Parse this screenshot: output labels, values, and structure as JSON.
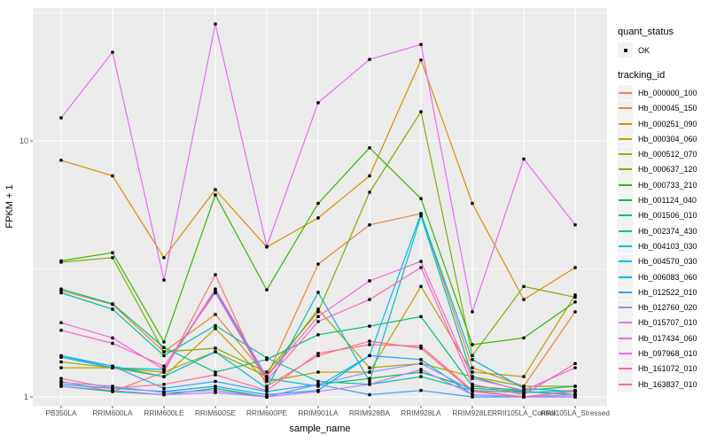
{
  "legend": {
    "quant_status_title": "quant_status",
    "quant_status_items": [
      {
        "label": "OK",
        "marker": "point",
        "color": "#000000"
      }
    ],
    "tracking_id_title": "tracking_id"
  },
  "chart_data": {
    "type": "line",
    "title": "",
    "xlabel": "sample_name",
    "ylabel": "FPKM + 1",
    "y_scale": "log10",
    "ylim": [
      0.93,
      33.5
    ],
    "y_major_ticks": [
      1,
      10
    ],
    "y_tick_labels": [
      "1",
      "10"
    ],
    "y_minor_ticks": [
      3.1623,
      31.623
    ],
    "grid": true,
    "legend_position": "right",
    "point_marker": {
      "shape": "square",
      "color": "#000000",
      "size": 3.4
    },
    "colors": {
      "figure_background": "#FFFFFF",
      "panel_background": "#EBEBEB",
      "gridline": "#FFFFFF",
      "axis_text": "#4D4D4D",
      "axis_title": "#000000",
      "tick_mark": "#333333",
      "legend_key_background": "#F2F2F2"
    },
    "categories": [
      "PB350LA",
      "RRIM600LA",
      "RRIM600LE",
      "RRIM600SE",
      "RRIM600PE",
      "RRIM901LA",
      "RRIM928BA",
      "RRIM928LA",
      "RRIM928LE",
      "RRII105LA_Control",
      "RRII105LA_Stressed"
    ],
    "series": [
      {
        "name": "Hb_000000_100",
        "color": "#F8766D",
        "values": [
          1.15,
          1.05,
          1.25,
          3.0,
          1.1,
          1.45,
          1.65,
          1.55,
          1.05,
          1.0,
          1.05
        ]
      },
      {
        "name": "Hb_000045_150",
        "color": "#EA8331",
        "values": [
          2.6,
          2.3,
          1.5,
          2.1,
          1.2,
          3.3,
          4.7,
          5.2,
          1.3,
          1.1,
          2.15
        ]
      },
      {
        "name": "Hb_000251_090",
        "color": "#D89000",
        "values": [
          8.4,
          7.3,
          3.5,
          6.45,
          3.85,
          5.0,
          7.3,
          20.7,
          5.7,
          2.4,
          3.2
        ]
      },
      {
        "name": "Hb_000304_060",
        "color": "#C09B00",
        "values": [
          1.3,
          1.3,
          1.2,
          1.85,
          1.15,
          1.25,
          1.25,
          2.7,
          1.25,
          1.2,
          2.5
        ]
      },
      {
        "name": "Hb_000512_070",
        "color": "#A3A500",
        "values": [
          1.37,
          1.3,
          1.25,
          1.5,
          1.2,
          2.2,
          1.3,
          1.35,
          1.2,
          1.1,
          1.1
        ]
      },
      {
        "name": "Hb_000637_120",
        "color": "#7CAE00",
        "values": [
          3.36,
          3.5,
          1.5,
          1.55,
          1.25,
          2.15,
          6.3,
          13.0,
          1.45,
          2.7,
          2.45
        ]
      },
      {
        "name": "Hb_000733_210",
        "color": "#39B600",
        "values": [
          3.4,
          3.66,
          1.64,
          6.15,
          2.62,
          5.7,
          9.4,
          5.95,
          1.6,
          1.7,
          2.35
        ]
      },
      {
        "name": "Hb_001124_040",
        "color": "#00BB4E",
        "values": [
          1.1,
          1.05,
          1.02,
          1.08,
          1.0,
          1.12,
          1.18,
          1.25,
          1.08,
          1.05,
          1.02
        ]
      },
      {
        "name": "Hb_001506_010",
        "color": "#00BF7D",
        "values": [
          2.64,
          2.31,
          1.56,
          1.25,
          1.4,
          1.75,
          1.89,
          2.06,
          1.1,
          1.06,
          1.1
        ]
      },
      {
        "name": "Hb_002374_430",
        "color": "#00C1A3",
        "values": [
          2.55,
          2.2,
          1.45,
          1.9,
          1.42,
          1.15,
          1.12,
          1.2,
          1.06,
          1.04,
          1.06
        ]
      },
      {
        "name": "Hb_004103_030",
        "color": "#00BFC4",
        "values": [
          1.45,
          1.32,
          1.2,
          1.5,
          1.08,
          2.56,
          1.15,
          5.1,
          1.2,
          1.05,
          1.02
        ]
      },
      {
        "name": "Hb_004570_030",
        "color": "#00BAE0",
        "values": [
          1.43,
          1.3,
          1.28,
          2.6,
          1.18,
          1.1,
          1.45,
          5.2,
          1.4,
          1.08,
          1.05
        ]
      },
      {
        "name": "Hb_006083_060",
        "color": "#00B0F6",
        "values": [
          1.12,
          1.08,
          1.05,
          1.1,
          1.02,
          1.06,
          1.45,
          1.4,
          1.02,
          1.0,
          1.02
        ]
      },
      {
        "name": "Hb_012522_010",
        "color": "#35A2FF",
        "values": [
          1.43,
          1.32,
          1.08,
          1.15,
          1.05,
          1.12,
          1.02,
          1.06,
          1.0,
          1.0,
          1.0
        ]
      },
      {
        "name": "Hb_012760_020",
        "color": "#9590FF",
        "values": [
          1.14,
          1.1,
          1.04,
          1.06,
          1.0,
          1.12,
          1.25,
          1.35,
          1.06,
          1.0,
          1.02
        ]
      },
      {
        "name": "Hb_015707_010",
        "color": "#C77CFF",
        "values": [
          1.1,
          1.06,
          1.02,
          1.04,
          1.0,
          1.05,
          1.12,
          1.28,
          1.02,
          1.0,
          1.0
        ]
      },
      {
        "name": "Hb_017434_060",
        "color": "#E76BF3",
        "values": [
          12.3,
          22.2,
          2.86,
          28.6,
          3.87,
          14.1,
          20.8,
          23.8,
          2.15,
          8.5,
          4.7
        ]
      },
      {
        "name": "Hb_097968_010",
        "color": "#FA62DB",
        "values": [
          1.95,
          1.7,
          1.28,
          2.64,
          1.2,
          2.06,
          2.84,
          3.38,
          1.18,
          1.06,
          1.3
        ]
      },
      {
        "name": "Hb_161072_010",
        "color": "#FF62BC",
        "values": [
          1.82,
          1.62,
          1.32,
          2.55,
          1.16,
          1.97,
          2.4,
          3.2,
          1.12,
          1.02,
          1.35
        ]
      },
      {
        "name": "Hb_163837_010",
        "color": "#FF6A98",
        "values": [
          1.18,
          1.08,
          1.12,
          1.22,
          1.06,
          1.48,
          1.6,
          1.58,
          1.06,
          1.0,
          1.06
        ]
      }
    ]
  }
}
